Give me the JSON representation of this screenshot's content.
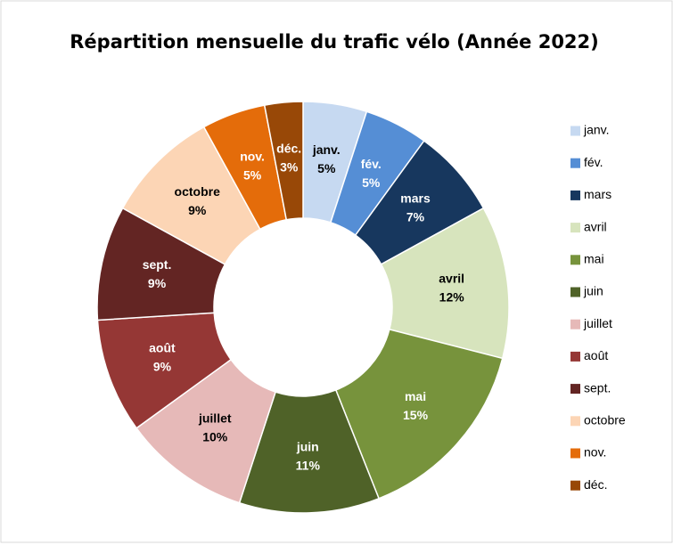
{
  "chart_data": {
    "type": "donut",
    "title": "Répartition mensuelle du trafic vélo (Année 2022)",
    "categories": [
      "janv.",
      "fév.",
      "mars",
      "avril",
      "mai",
      "juin",
      "juillet",
      "août",
      "sept.",
      "octobre",
      "nov.",
      "déc."
    ],
    "values": [
      5,
      5,
      7,
      12,
      15,
      11,
      10,
      9,
      9,
      9,
      5,
      3
    ],
    "value_labels": [
      "5%",
      "5%",
      "7%",
      "12%",
      "15%",
      "11%",
      "10%",
      "9%",
      "9%",
      "9%",
      "5%",
      "3%"
    ],
    "colors": [
      "#c6d9f1",
      "#558ed5",
      "#17375e",
      "#d7e4bd",
      "#77933c",
      "#4f6228",
      "#e6b9b8",
      "#953735",
      "#632523",
      "#fcd5b5",
      "#e46c0a",
      "#984807"
    ],
    "legend": "right"
  }
}
